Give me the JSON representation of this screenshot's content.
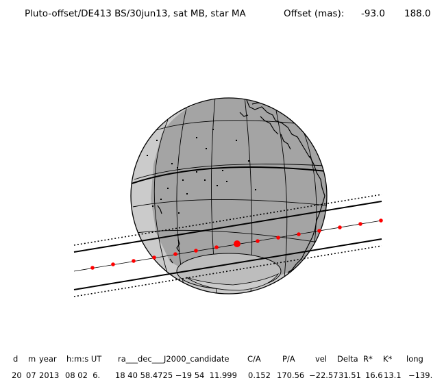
{
  "header": {
    "title": "Pluto-offset/DE413 BS/30jun13, sat MB, star MA",
    "offset_label": "Offset (mas):",
    "offset_x": "-93.0",
    "offset_y": "188.0"
  },
  "colors": {
    "night": "#a4a4a4",
    "day": "#cbcbcb",
    "outline": "#000000",
    "track_points": "#ff0000"
  },
  "table": {
    "columns": [
      "d",
      "m",
      "year",
      "h:m:s",
      "UT",
      "ra",
      "dec",
      "J2000_candidate",
      "C/A",
      "P/A",
      "vel",
      "Delta",
      "R*",
      "K*",
      "long"
    ],
    "headers": [
      "d",
      "m",
      "year",
      "h:m:s UT",
      "ra___dec___J2000_candidate",
      "C/A",
      "P/A",
      "vel",
      "Delta",
      "R*",
      "K*",
      "long"
    ],
    "values": [
      "20",
      "07",
      "2013",
      "08 02  6.",
      "18 40 58.4725 −19 54  11.999",
      "0.152",
      "170.56",
      "−22.57",
      "31.51",
      "16.6",
      "13.1",
      "−139."
    ]
  }
}
